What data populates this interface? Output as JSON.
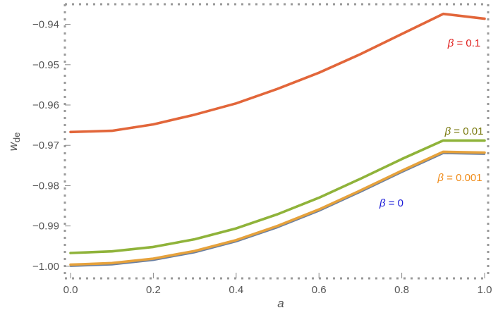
{
  "chart_data": {
    "type": "line",
    "xlabel": "a",
    "ylabel_main": "w",
    "ylabel_sub": "de",
    "xlim": [
      0,
      1
    ],
    "ylim": [
      -1.003,
      -0.935
    ],
    "x_ticks": [
      "0.0",
      "0.2",
      "0.4",
      "0.6",
      "0.8",
      "1.0"
    ],
    "y_ticks": [
      "-0.94",
      "-0.95",
      "-0.96",
      "-0.97",
      "-0.98",
      "-0.99",
      "-1.00"
    ],
    "grid": false,
    "x": [
      0.0,
      0.1,
      0.2,
      0.3,
      0.4,
      0.5,
      0.6,
      0.7,
      0.8,
      0.9,
      1.0
    ],
    "series": [
      {
        "label_prefix": "β",
        "label_value": " = 0.1",
        "color": "#e2663a",
        "values": [
          -0.9667,
          -0.9664,
          -0.9648,
          -0.9624,
          -0.9596,
          -0.956,
          -0.952,
          -0.9474,
          -0.9424,
          -0.9374,
          -0.9386
        ]
      },
      {
        "label_prefix": "β",
        "label_value": " = 0.01",
        "color": "#8fb33a",
        "values": [
          -0.9967,
          -0.9963,
          -0.9952,
          -0.9933,
          -0.9906,
          -0.9871,
          -0.983,
          -0.9783,
          -0.9734,
          -0.9688,
          -0.9688
        ]
      },
      {
        "label_prefix": "β",
        "label_value": " = 0.001",
        "color": "#e6a23c",
        "values": [
          -0.9996,
          -0.9992,
          -0.9981,
          -0.9962,
          -0.9935,
          -0.99,
          -0.9859,
          -0.9812,
          -0.9763,
          -0.9716,
          -0.9718
        ]
      },
      {
        "label_prefix": "β",
        "label_value": " = 0",
        "color": "#6a7fa0",
        "values": [
          -1.0,
          -0.9996,
          -0.9985,
          -0.9966,
          -0.9939,
          -0.9904,
          -0.9863,
          -0.9816,
          -0.9767,
          -0.972,
          -0.9722
        ]
      }
    ],
    "annotations": [
      {
        "prefix": "β",
        "text": " = 0.1",
        "color": "#e0201e"
      },
      {
        "prefix": "β",
        "text": " = 0.01",
        "color": "#7a7a10"
      },
      {
        "prefix": "β",
        "text": " = 0.001",
        "color": "#f08c1a"
      },
      {
        "prefix": "β",
        "text": " = 0",
        "color": "#1a1ad8"
      }
    ]
  }
}
